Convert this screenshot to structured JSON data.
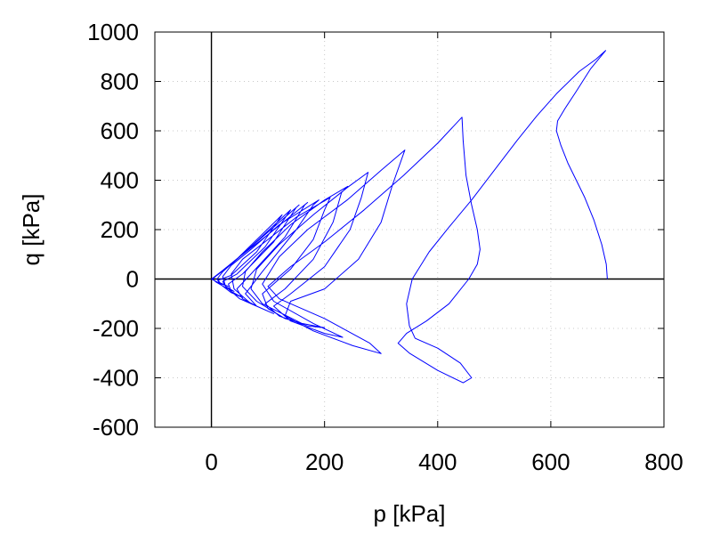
{
  "chart_data": {
    "type": "line",
    "title": "",
    "xlabel": "p [kPa]",
    "ylabel": "q [kPa]",
    "xlim": [
      -100,
      800
    ],
    "ylim": [
      -600,
      1000
    ],
    "xticks": [
      0,
      200,
      400,
      600,
      800
    ],
    "yticks": [
      -600,
      -400,
      -200,
      0,
      200,
      400,
      600,
      800,
      1000
    ],
    "xtick_labels": [
      "0",
      "200",
      "400",
      "600",
      "800"
    ],
    "ytick_labels": [
      "-600",
      "-400",
      "-200",
      "0",
      "200",
      "400",
      "600",
      "800",
      "1000"
    ],
    "grid": true,
    "legend": "none",
    "series_color": "#0000ff",
    "series": [
      {
        "points": [
          [
            700,
            0
          ],
          [
            698,
            60
          ],
          [
            690,
            140
          ],
          [
            676,
            240
          ],
          [
            660,
            330
          ],
          [
            645,
            400
          ],
          [
            630,
            470
          ],
          [
            618,
            540
          ],
          [
            610,
            600
          ],
          [
            612,
            640
          ],
          [
            625,
            690
          ],
          [
            645,
            760
          ],
          [
            670,
            850
          ],
          [
            697,
            925
          ],
          [
            680,
            890
          ],
          [
            650,
            840
          ],
          [
            610,
            750
          ],
          [
            575,
            660
          ],
          [
            540,
            560
          ],
          [
            500,
            440
          ],
          [
            460,
            320
          ],
          [
            420,
            210
          ],
          [
            385,
            110
          ],
          [
            355,
            0
          ],
          [
            345,
            -100
          ],
          [
            350,
            -190
          ],
          [
            360,
            -240
          ],
          [
            400,
            -280
          ],
          [
            440,
            -340
          ],
          [
            460,
            -400
          ],
          [
            445,
            -420
          ],
          [
            400,
            -370
          ],
          [
            350,
            -300
          ],
          [
            330,
            -260
          ],
          [
            345,
            -220
          ],
          [
            380,
            -170
          ],
          [
            420,
            -100
          ],
          [
            455,
            0
          ],
          [
            470,
            60
          ],
          [
            475,
            120
          ],
          [
            470,
            200
          ],
          [
            460,
            300
          ],
          [
            450,
            420
          ],
          [
            445,
            560
          ],
          [
            443,
            655
          ],
          [
            400,
            550
          ],
          [
            340,
            420
          ],
          [
            270,
            280
          ],
          [
            200,
            150
          ],
          [
            140,
            50
          ],
          [
            100,
            -30
          ],
          [
            120,
            -80
          ],
          [
            200,
            -160
          ],
          [
            280,
            -260
          ],
          [
            300,
            -302
          ],
          [
            250,
            -270
          ],
          [
            180,
            -210
          ],
          [
            130,
            -150
          ],
          [
            140,
            -90
          ],
          [
            200,
            -40
          ],
          [
            260,
            80
          ],
          [
            300,
            230
          ],
          [
            320,
            380
          ],
          [
            342,
            522
          ],
          [
            300,
            440
          ],
          [
            240,
            320
          ],
          [
            170,
            200
          ],
          [
            120,
            90
          ],
          [
            90,
            -20
          ],
          [
            110,
            -90
          ],
          [
            180,
            -180
          ],
          [
            232,
            -236
          ],
          [
            200,
            -220
          ],
          [
            140,
            -170
          ],
          [
            110,
            -110
          ],
          [
            140,
            -60
          ],
          [
            200,
            50
          ],
          [
            245,
            200
          ],
          [
            265,
            330
          ],
          [
            277,
            432
          ],
          [
            240,
            370
          ],
          [
            180,
            260
          ],
          [
            120,
            140
          ],
          [
            80,
            40
          ],
          [
            70,
            -40
          ],
          [
            90,
            -100
          ],
          [
            160,
            -180
          ],
          [
            200,
            -197
          ],
          [
            170,
            -190
          ],
          [
            120,
            -150
          ],
          [
            95,
            -100
          ],
          [
            130,
            -40
          ],
          [
            180,
            80
          ],
          [
            215,
            230
          ],
          [
            230,
            350
          ],
          [
            241,
            375
          ],
          [
            200,
            320
          ],
          [
            140,
            220
          ],
          [
            90,
            110
          ],
          [
            60,
            30
          ],
          [
            55,
            -30
          ],
          [
            80,
            -90
          ],
          [
            130,
            -160
          ],
          [
            160,
            -180
          ],
          [
            130,
            -160
          ],
          [
            100,
            -120
          ],
          [
            90,
            -60
          ],
          [
            140,
            40
          ],
          [
            180,
            160
          ],
          [
            200,
            280
          ],
          [
            210,
            330
          ],
          [
            150,
            250
          ],
          [
            100,
            160
          ],
          [
            55,
            80
          ],
          [
            35,
            20
          ],
          [
            40,
            -40
          ],
          [
            70,
            -100
          ],
          [
            110,
            -140
          ],
          [
            80,
            -110
          ],
          [
            60,
            -60
          ],
          [
            90,
            30
          ],
          [
            150,
            200
          ],
          [
            180,
            300
          ],
          [
            190,
            320
          ],
          [
            120,
            220
          ],
          [
            70,
            120
          ],
          [
            35,
            55
          ],
          [
            20,
            10
          ],
          [
            25,
            -30
          ],
          [
            50,
            -80
          ],
          [
            80,
            -110
          ],
          [
            55,
            -80
          ],
          [
            45,
            -40
          ],
          [
            70,
            20
          ],
          [
            130,
            170
          ],
          [
            165,
            300
          ],
          [
            170,
            310
          ],
          [
            100,
            180
          ],
          [
            50,
            90
          ],
          [
            20,
            30
          ],
          [
            10,
            0
          ],
          [
            15,
            -20
          ],
          [
            35,
            -55
          ],
          [
            55,
            -75
          ],
          [
            35,
            -50
          ],
          [
            30,
            -20
          ],
          [
            55,
            20
          ],
          [
            110,
            150
          ],
          [
            150,
            290
          ],
          [
            155,
            300
          ],
          [
            80,
            150
          ],
          [
            35,
            60
          ],
          [
            10,
            15
          ],
          [
            2,
            0
          ],
          [
            8,
            -12
          ],
          [
            25,
            -35
          ],
          [
            40,
            -50
          ],
          [
            25,
            -30
          ],
          [
            20,
            -10
          ],
          [
            45,
            20
          ],
          [
            95,
            130
          ],
          [
            140,
            280
          ],
          [
            60,
            110
          ],
          [
            20,
            35
          ],
          [
            3,
            5
          ],
          [
            0,
            0
          ],
          [
            5,
            -6
          ],
          [
            15,
            -18
          ],
          [
            30,
            -30
          ],
          [
            15,
            -15
          ],
          [
            12,
            -5
          ],
          [
            35,
            15
          ],
          [
            80,
            110
          ],
          [
            125,
            260
          ],
          [
            40,
            70
          ],
          [
            10,
            15
          ],
          [
            0,
            0
          ]
        ]
      }
    ]
  }
}
